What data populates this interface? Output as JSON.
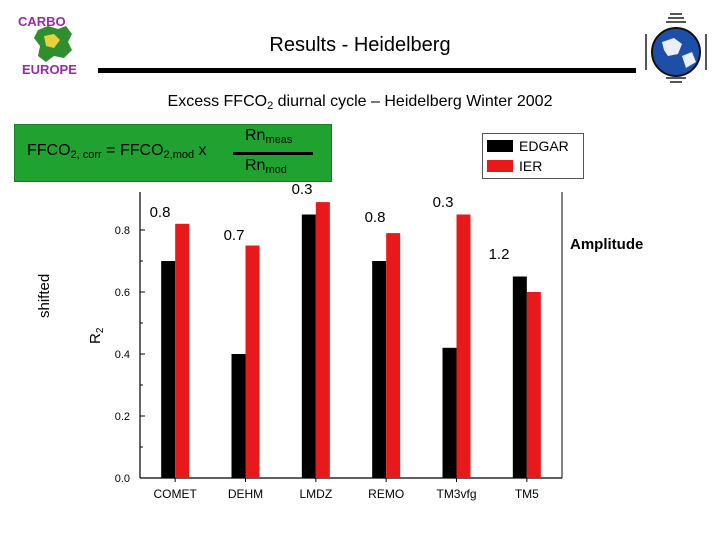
{
  "slide": {
    "title": "Results - Heidelberg",
    "heading": "Excess FFCO",
    "heading_sub": "2",
    "heading_rest": " diurnal cycle – Heidelberg Winter 2002",
    "shifted_label": "shifted",
    "amplitude_label": "Amplitude"
  },
  "formula": {
    "lhs_a": "FFCO",
    "lhs_sub": "2, corr",
    "lhs_b": " = FFCO",
    "lhs_sub2": "2,mod",
    "lhs_c": " x",
    "num": "Rn",
    "num_sub": "meas",
    "den": "Rn",
    "den_sub": "mod"
  },
  "logos": {
    "left_text": "CARBO EUROPE",
    "left_icon": "carboeurope-logo-icon",
    "right_icon": "globe-logo-icon"
  },
  "colors": {
    "edgar": "#000000",
    "ier": "#e8191b",
    "formula_bg": "#1fa22f"
  },
  "chart_data": {
    "type": "bar",
    "categories": [
      "COMET",
      "DEHM",
      "LMDZ",
      "REMO",
      "TM3vfg",
      "TM5"
    ],
    "series": [
      {
        "name": "EDGAR",
        "values": [
          0.7,
          0.4,
          0.85,
          0.7,
          0.42,
          0.65
        ]
      },
      {
        "name": "IER",
        "values": [
          0.82,
          0.75,
          0.89,
          0.79,
          0.85,
          0.6
        ]
      }
    ],
    "ylabel": "R",
    "ylabel_sub": "2",
    "ylim": [
      0,
      0.8
    ],
    "yticks": [
      "0.0",
      "0.2",
      "0.4",
      "0.6",
      "0.8"
    ],
    "amplitude_annotations": [
      "0.8",
      "0.7",
      "0.3",
      "0.8",
      "0.3",
      "1.2"
    ],
    "legend": [
      "EDGAR",
      "IER"
    ],
    "legend_position": "top-right",
    "grid": false
  }
}
